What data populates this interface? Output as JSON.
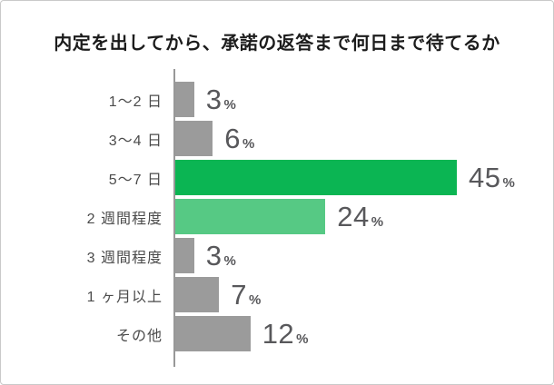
{
  "chart_data": {
    "type": "bar",
    "orientation": "horizontal",
    "title": "内定を出してから、承諾の返答まで何日まで待てるか",
    "categories": [
      "1〜2 日",
      "3〜4 日",
      "5〜7 日",
      "2 週間程度",
      "3 週間程度",
      "1 ヶ月以上",
      "その他"
    ],
    "values": [
      3,
      6,
      45,
      24,
      3,
      7,
      12
    ],
    "unit": "%",
    "xlim": [
      0,
      45
    ],
    "grid": false,
    "value_labels_shown": true,
    "bar_colors": [
      "#9b9b9b",
      "#9b9b9b",
      "#0bb553",
      "#56c984",
      "#9b9b9b",
      "#9b9b9b",
      "#9b9b9b"
    ],
    "colors": {
      "default_bar": "#9b9b9b",
      "highlight_bar": "#0bb553",
      "secondary_highlight_bar": "#56c984",
      "axis_line": "#989898",
      "value_text": "#58585b",
      "category_text": "#4b4b4b",
      "title_text": "#1c1c1c",
      "card_border": "#c9c9c9",
      "background": "#ffffff"
    }
  }
}
